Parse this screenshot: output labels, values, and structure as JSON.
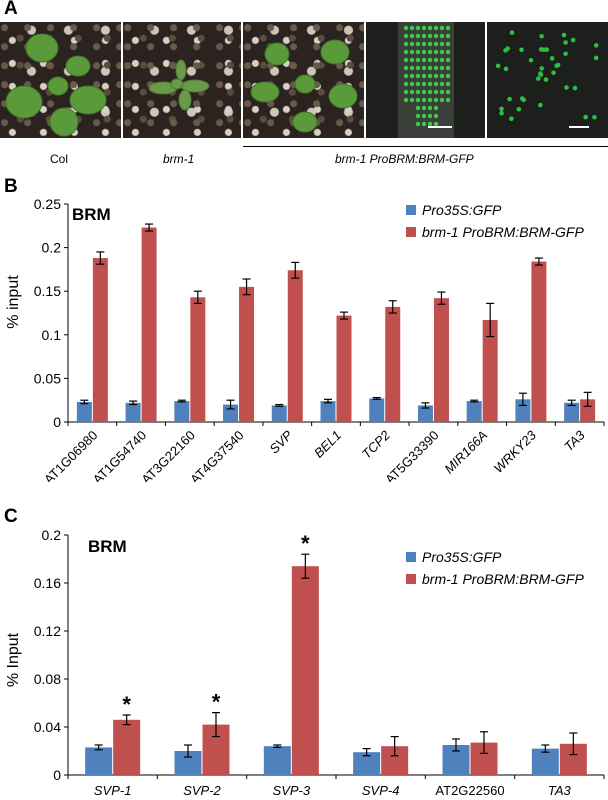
{
  "panel_a": {
    "letter": "A",
    "captions": {
      "col": "Col",
      "brm1": "brm-1",
      "complement": "brm-1 ProBRM:BRM-GFP"
    }
  },
  "chart_data": [
    {
      "panel": "B",
      "type": "bar",
      "inner_title": "BRM",
      "ylabel": "% input",
      "ylim": [
        0,
        0.25
      ],
      "yticks": [
        "0",
        "0.05",
        "0.1",
        "0.15",
        "0.2",
        "0.25"
      ],
      "ytick_values": [
        0,
        0.05,
        0.1,
        0.15,
        0.2,
        0.25
      ],
      "categories": [
        "AT1G06980",
        "AT1G54740",
        "AT3G22160",
        "AT4G37540",
        "SVP",
        "BEL1",
        "TCP2",
        "AT5G33390",
        "MIR166A",
        "WRKY23",
        "TA3"
      ],
      "category_italic": [
        false,
        false,
        false,
        false,
        true,
        true,
        true,
        false,
        true,
        true,
        true
      ],
      "legend_position": "top-right",
      "series": [
        {
          "name": "Pro35S:GFP",
          "color": "#4f81bd",
          "values": [
            0.023,
            0.022,
            0.024,
            0.02,
            0.019,
            0.024,
            0.027,
            0.019,
            0.024,
            0.026,
            0.022
          ],
          "errors": [
            0.002,
            0.002,
            0.001,
            0.005,
            0.001,
            0.002,
            0.001,
            0.003,
            0.001,
            0.007,
            0.003
          ]
        },
        {
          "name": "brm-1 ProBRM:BRM-GFP",
          "color": "#c0504d",
          "values": [
            0.188,
            0.223,
            0.143,
            0.155,
            0.174,
            0.122,
            0.132,
            0.142,
            0.117,
            0.184,
            0.026
          ],
          "errors": [
            0.007,
            0.004,
            0.007,
            0.009,
            0.009,
            0.004,
            0.007,
            0.007,
            0.019,
            0.004,
            0.008
          ]
        }
      ]
    },
    {
      "panel": "C",
      "type": "bar",
      "inner_title": "BRM",
      "ylabel": "% Input",
      "ylim": [
        0,
        0.2
      ],
      "yticks": [
        "0",
        "0.04",
        "0.08",
        "0.12",
        "0.16",
        "0.2"
      ],
      "ytick_values": [
        0,
        0.04,
        0.08,
        0.12,
        0.16,
        0.2
      ],
      "categories": [
        "SVP-1",
        "SVP-2",
        "SVP-3",
        "SVP-4",
        "AT2G22560",
        "TA3"
      ],
      "category_italic": [
        true,
        true,
        true,
        true,
        false,
        true
      ],
      "legend_position": "top-right",
      "significance": [
        "*",
        "*",
        "*",
        "",
        "",
        ""
      ],
      "series": [
        {
          "name": "Pro35S:GFP",
          "color": "#4f81bd",
          "values": [
            0.023,
            0.02,
            0.024,
            0.019,
            0.025,
            0.022
          ],
          "errors": [
            0.002,
            0.005,
            0.001,
            0.003,
            0.005,
            0.003
          ]
        },
        {
          "name": "brm-1 ProBRM:BRM-GFP",
          "color": "#c0504d",
          "values": [
            0.046,
            0.042,
            0.174,
            0.024,
            0.027,
            0.026
          ],
          "errors": [
            0.004,
            0.01,
            0.01,
            0.008,
            0.009,
            0.009
          ]
        }
      ]
    }
  ]
}
